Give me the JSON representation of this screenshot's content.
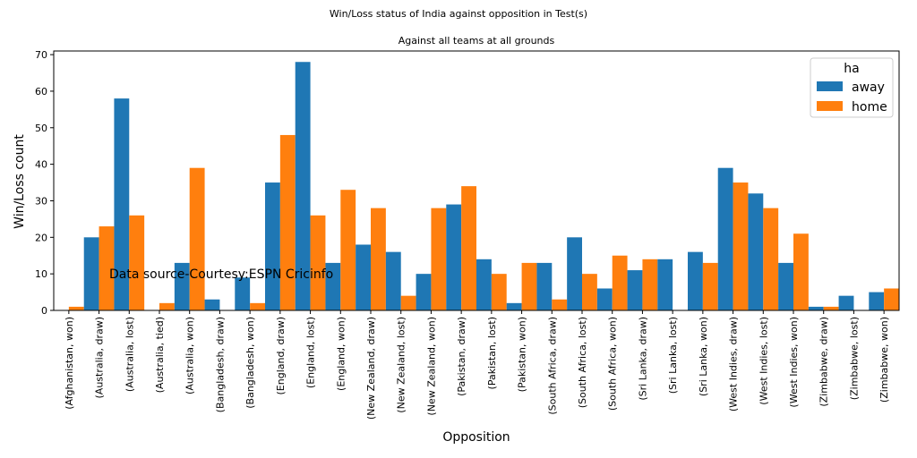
{
  "chart_data": {
    "type": "bar",
    "title": "Win/Loss status of India against opposition in Test(s)",
    "subtitle": "Against all teams at all grounds",
    "xlabel": "Opposition",
    "ylabel": "Win/Loss count",
    "ylim": [
      0,
      71
    ],
    "yticks": [
      0,
      10,
      20,
      30,
      40,
      50,
      60,
      70
    ],
    "annotation": "Data source-Courtesy:ESPN Cricinfo",
    "legend": {
      "title": "ha",
      "position": "top-right"
    },
    "categories": [
      "(Afghanistan, won)",
      "(Australia, draw)",
      "(Australia, lost)",
      "(Australia, tied)",
      "(Australia, won)",
      "(Bangladesh, draw)",
      "(Bangladesh, won)",
      "(England, draw)",
      "(England, lost)",
      "(England, won)",
      "(New Zealand, draw)",
      "(New Zealand, lost)",
      "(New Zealand, won)",
      "(Pakistan, draw)",
      "(Pakistan, lost)",
      "(Pakistan, won)",
      "(South Africa, draw)",
      "(South Africa, lost)",
      "(South Africa, won)",
      "(Sri Lanka, draw)",
      "(Sri Lanka, lost)",
      "(Sri Lanka, won)",
      "(West Indies, draw)",
      "(West Indies, lost)",
      "(West Indies, won)",
      "(Zimbabwe, draw)",
      "(Zimbabwe, lost)",
      "(Zimbabwe, won)"
    ],
    "series": [
      {
        "name": "away",
        "color": "#1f77b4",
        "values": [
          0,
          20,
          58,
          0,
          13,
          3,
          9,
          35,
          68,
          13,
          18,
          16,
          10,
          29,
          14,
          2,
          13,
          20,
          6,
          11,
          14,
          16,
          39,
          32,
          13,
          1,
          4,
          5
        ]
      },
      {
        "name": "home",
        "color": "#ff7f0e",
        "values": [
          1,
          23,
          26,
          2,
          39,
          0,
          2,
          48,
          26,
          33,
          28,
          4,
          28,
          34,
          10,
          13,
          3,
          10,
          15,
          14,
          0,
          13,
          35,
          28,
          21,
          1,
          0,
          6
        ]
      }
    ]
  }
}
